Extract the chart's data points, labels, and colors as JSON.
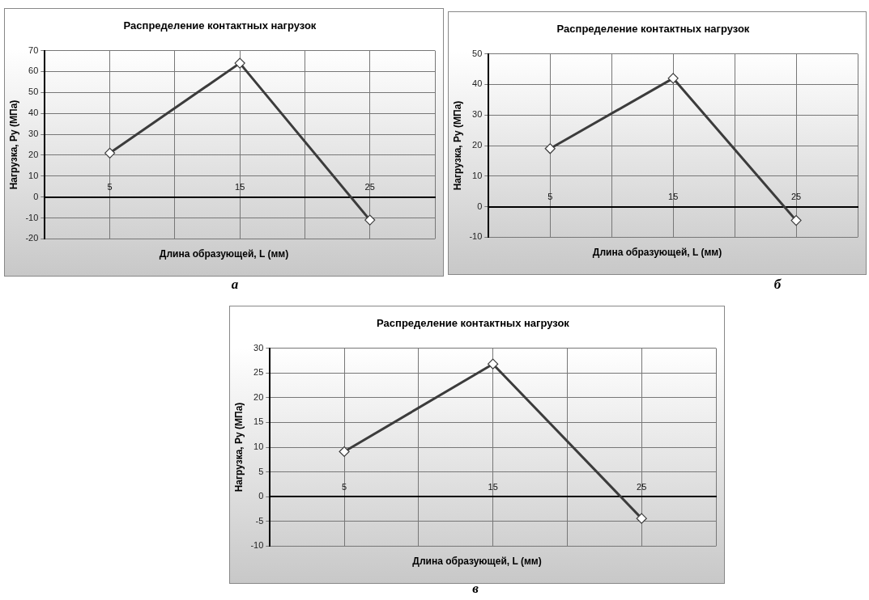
{
  "chart_data": [
    {
      "type": "line",
      "title": "Распределение контактных нагрузок",
      "xlabel": "Длина образующей, L (мм)",
      "ylabel": "Нагрузка, Py (МПа)",
      "x": [
        5,
        15,
        25
      ],
      "values": [
        21,
        64,
        -11
      ],
      "color": "#3c3c3c",
      "xlim": [
        0,
        30
      ],
      "xticks": [
        {
          "value": 0,
          "label": null
        },
        5,
        {
          "value": 10,
          "label": null
        },
        15,
        {
          "value": 20,
          "label": null
        },
        25,
        {
          "value": 30,
          "label": null
        }
      ],
      "ylim": [
        -20,
        70
      ],
      "yticks": [
        -20,
        -10,
        0,
        10,
        20,
        30,
        40,
        50,
        60,
        70
      ],
      "grid": true,
      "marker": "diamond",
      "annotations": [
        "а"
      ]
    },
    {
      "type": "line",
      "title": "Распределение контактных нагрузок",
      "xlabel": "Длина образующей, L (мм)",
      "ylabel": "Нагрузка, Py (МПа)",
      "x": [
        5,
        15,
        25
      ],
      "values": [
        19,
        42,
        -4.5
      ],
      "color": "#3c3c3c",
      "xlim": [
        0,
        30
      ],
      "xticks": [
        {
          "value": 0,
          "label": null
        },
        5,
        {
          "value": 10,
          "label": null
        },
        15,
        {
          "value": 20,
          "label": null
        },
        25,
        {
          "value": 30,
          "label": null
        }
      ],
      "ylim": [
        -10,
        50
      ],
      "yticks": [
        -10,
        0,
        10,
        20,
        30,
        40,
        50
      ],
      "grid": true,
      "marker": "diamond",
      "annotations": [
        "б"
      ]
    },
    {
      "type": "line",
      "title": "Распределение контактных нагрузок",
      "xlabel": "Длина образующей, L (мм)",
      "ylabel": "Нагрузка, Py (МПа)",
      "x": [
        5,
        15,
        25
      ],
      "values": [
        9.1,
        26.8,
        -4.4
      ],
      "color": "#3c3c3c",
      "xlim": [
        0,
        30
      ],
      "xticks": [
        {
          "value": 0,
          "label": null
        },
        5,
        {
          "value": 10,
          "label": null
        },
        15,
        {
          "value": 20,
          "label": null
        },
        25,
        {
          "value": 30,
          "label": null
        }
      ],
      "ylim": [
        -10,
        30
      ],
      "yticks": [
        -10,
        -5,
        0,
        5,
        10,
        15,
        20,
        25,
        30
      ],
      "grid": true,
      "marker": "diamond",
      "annotations": [
        "в"
      ]
    }
  ]
}
